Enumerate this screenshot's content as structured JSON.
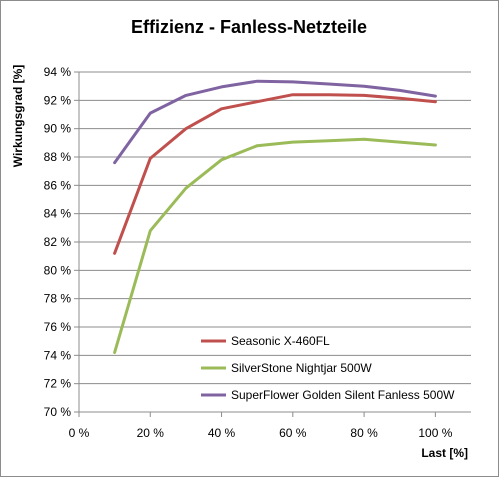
{
  "chart_data": {
    "type": "line",
    "title": "Effizienz  - Fanless-Netzteile",
    "xlabel": "Last [%]",
    "ylabel": "Wirkungsgrad [%]",
    "xlim": [
      0,
      110
    ],
    "ylim": [
      70,
      94
    ],
    "x_ticks": [
      0,
      20,
      40,
      60,
      80,
      100
    ],
    "x_tick_labels": [
      "0 %",
      "20 %",
      "40 %",
      "60 %",
      "80 %",
      "100 %"
    ],
    "y_ticks": [
      70,
      72,
      74,
      76,
      78,
      80,
      82,
      84,
      86,
      88,
      90,
      92,
      94
    ],
    "y_tick_labels": [
      "70 %",
      "72 %",
      "74 %",
      "76 %",
      "78 %",
      "80 %",
      "82 %",
      "84 %",
      "86 %",
      "88 %",
      "90 %",
      "92 %",
      "94 %"
    ],
    "grid": "horizontal",
    "legend_position": "bottom-right",
    "series": [
      {
        "name": "Seasonic X-460FL",
        "color": "#c0504d",
        "x": [
          10,
          20,
          30,
          40,
          50,
          60,
          70,
          80,
          90,
          100
        ],
        "values": [
          81.2,
          87.9,
          90.0,
          91.4,
          91.9,
          92.4,
          92.4,
          92.35,
          92.15,
          91.9
        ]
      },
      {
        "name": "SilverStone Nightjar 500W",
        "color": "#9bbb59",
        "x": [
          10,
          20,
          30,
          40,
          50,
          60,
          70,
          80,
          90,
          100
        ],
        "values": [
          74.2,
          82.8,
          85.8,
          87.8,
          88.8,
          89.05,
          89.15,
          89.25,
          89.05,
          88.85
        ]
      },
      {
        "name": "SuperFlower Golden Silent Fanless 500W",
        "color": "#8064a2",
        "x": [
          10,
          20,
          30,
          40,
          50,
          60,
          70,
          80,
          90,
          100
        ],
        "values": [
          87.6,
          91.1,
          92.35,
          92.95,
          93.35,
          93.3,
          93.15,
          93.0,
          92.7,
          92.3
        ]
      }
    ]
  }
}
